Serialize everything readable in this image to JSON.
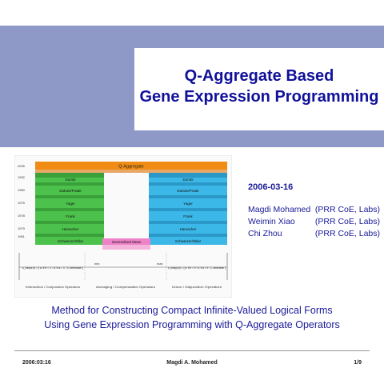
{
  "slide": {
    "title_line1": "Q-Aggregate Based",
    "title_line2": "Gene Expression Programming",
    "date": "2006-03-16",
    "authors": [
      {
        "name": "Magdi Mohamed",
        "affiliation": "(PRR CoE, Labs)"
      },
      {
        "name": "Weimin Xiao",
        "affiliation": "(PRR CoE, Labs)"
      },
      {
        "name": "Chi Zhou",
        "affiliation": "(PRR CoE, Labs)"
      }
    ],
    "subtitle_line1": "Method for Constructing Compact Infinite-Valued Logical Forms",
    "subtitle_line2": "Using Gene Expression Programming with Q-Aggregate Operators"
  },
  "figure": {
    "top_bar_label": "Q-Aggregate",
    "middle_bar_label": "Generalized Mean",
    "years": [
      "2005",
      "1952",
      "1960",
      "1975",
      "1978",
      "1979",
      "1961"
    ],
    "left_labels": [
      "Dombi",
      "Dubois/Prade",
      "Yager",
      "Frank",
      "Hamacher",
      "Schweizer/Sklar"
    ],
    "right_labels": [
      "Dombi",
      "Dubois/Prade",
      "Yager",
      "Frank",
      "Hamacher",
      "Schweizer/Sklar"
    ],
    "left_formula": "s_min(a,b) = { a, if b = 1 ; b, if a = 1 ; 0, otherwise }",
    "right_formula": "s_max(a,b) = { a, if b = 0 ; b, if a = 0 ; 1, otherwise }",
    "axis_labels": [
      "min",
      "max"
    ],
    "bottom_labels": [
      "Intersection / Conjunction Operators",
      "Averaging / Compensative Operators",
      "Union / Disjunction Operators"
    ],
    "colors": {
      "top": "#f08c14",
      "left": "#4cc24c",
      "right": "#3cb8e8",
      "middle": "#ee82c8"
    }
  },
  "footer": {
    "left": "2006:03:16",
    "center": "Magdi A. Mohamed",
    "right": "1/9"
  }
}
